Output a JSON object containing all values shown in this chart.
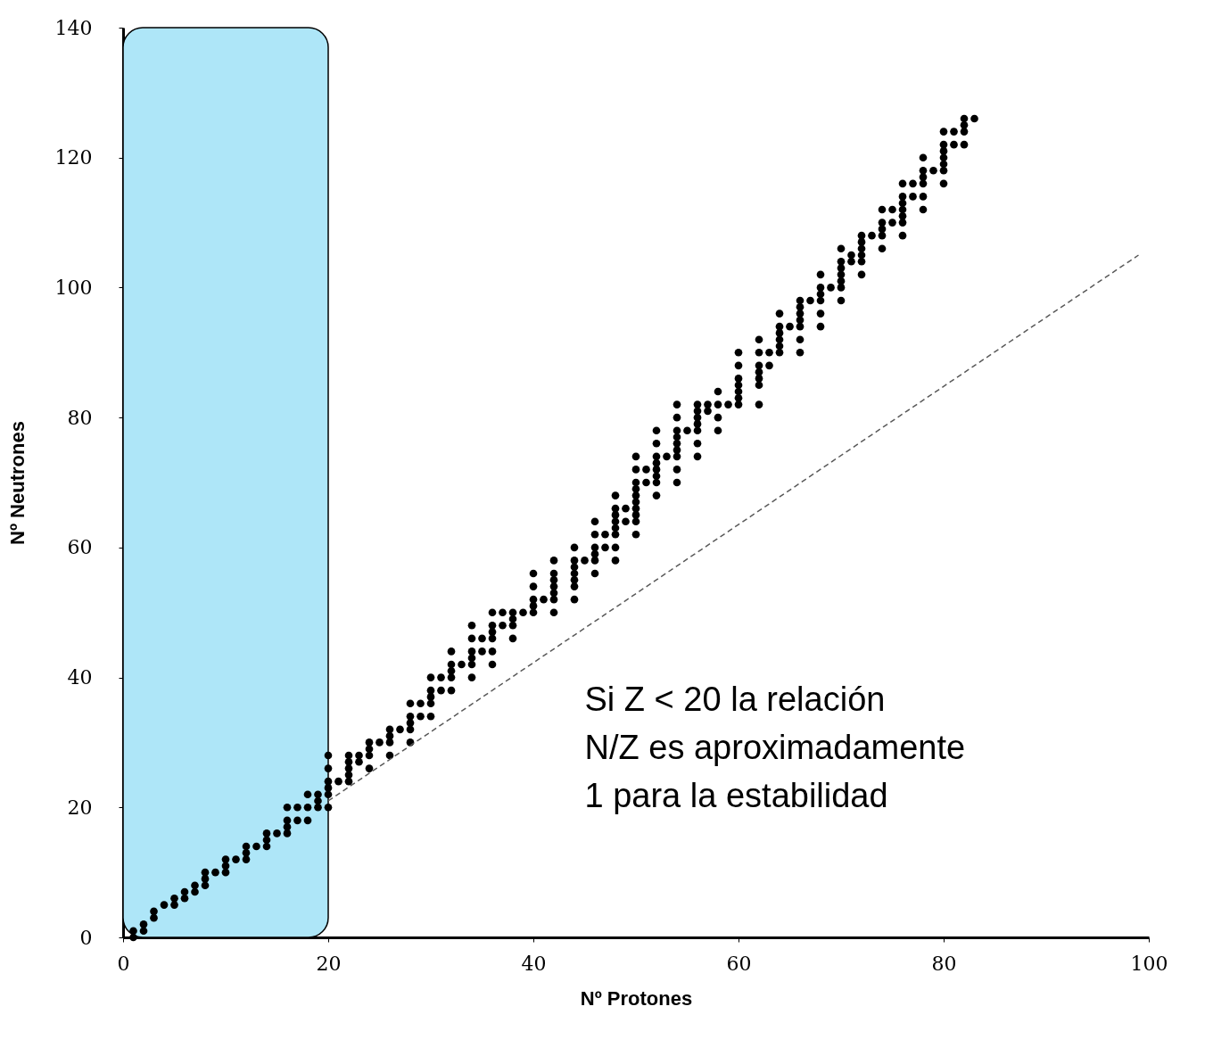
{
  "chart_data": {
    "type": "scatter",
    "xlabel": "Nº Protones",
    "ylabel": "Nº Neutrones",
    "xlim": [
      0,
      100
    ],
    "ylim": [
      0,
      140
    ],
    "xticks": [
      0,
      20,
      40,
      60,
      80,
      100
    ],
    "yticks": [
      0,
      20,
      40,
      60,
      80,
      100,
      120,
      140
    ],
    "grid": false,
    "series": [
      {
        "marker": "circle",
        "color": "#000000",
        "x": [
          1,
          1,
          2,
          2,
          3,
          3,
          4,
          5,
          5,
          6,
          6,
          7,
          7,
          8,
          8,
          8,
          9,
          10,
          10,
          10,
          11,
          12,
          12,
          12,
          13,
          14,
          14,
          14,
          15,
          16,
          16,
          16,
          16,
          17,
          17,
          18,
          18,
          18,
          19,
          19,
          19,
          20,
          20,
          20,
          20,
          20,
          20,
          21,
          22,
          22,
          22,
          22,
          22,
          23,
          23,
          24,
          24,
          24,
          24,
          25,
          26,
          26,
          26,
          26,
          27,
          28,
          28,
          28,
          28,
          28,
          29,
          29,
          30,
          30,
          30,
          30,
          30,
          31,
          31,
          32,
          32,
          32,
          32,
          32,
          33,
          34,
          34,
          34,
          34,
          34,
          34,
          35,
          35,
          36,
          36,
          36,
          36,
          36,
          36,
          37,
          37,
          38,
          38,
          38,
          38,
          39,
          40,
          40,
          40,
          40,
          40,
          41,
          42,
          42,
          42,
          42,
          42,
          42,
          42,
          44,
          44,
          44,
          44,
          44,
          44,
          44,
          45,
          46,
          46,
          46,
          46,
          46,
          46,
          47,
          47,
          48,
          48,
          48,
          48,
          48,
          48,
          48,
          48,
          49,
          49,
          50,
          50,
          50,
          50,
          50,
          50,
          50,
          50,
          50,
          50,
          51,
          51,
          52,
          52,
          52,
          52,
          52,
          52,
          52,
          52,
          53,
          54,
          54,
          54,
          54,
          54,
          54,
          54,
          54,
          54,
          55,
          56,
          56,
          56,
          56,
          56,
          56,
          56,
          57,
          57,
          58,
          58,
          58,
          58,
          59,
          60,
          60,
          60,
          60,
          60,
          60,
          60,
          62,
          62,
          62,
          62,
          62,
          62,
          62,
          63,
          63,
          64,
          64,
          64,
          64,
          64,
          64,
          65,
          66,
          66,
          66,
          66,
          66,
          66,
          66,
          67,
          68,
          68,
          68,
          68,
          68,
          68,
          69,
          70,
          70,
          70,
          70,
          70,
          70,
          70,
          71,
          71,
          72,
          72,
          72,
          72,
          72,
          72,
          73,
          74,
          74,
          74,
          74,
          74,
          75,
          75,
          76,
          76,
          76,
          76,
          76,
          76,
          76,
          77,
          77,
          78,
          78,
          78,
          78,
          78,
          78,
          79,
          80,
          80,
          80,
          80,
          80,
          80,
          80,
          81,
          81,
          82,
          82,
          82,
          82,
          83
        ],
        "values": [
          0,
          1,
          1,
          2,
          3,
          4,
          5,
          5,
          6,
          6,
          7,
          7,
          8,
          8,
          9,
          10,
          10,
          10,
          11,
          12,
          12,
          12,
          13,
          14,
          14,
          14,
          15,
          16,
          16,
          16,
          17,
          18,
          20,
          18,
          20,
          18,
          20,
          22,
          20,
          21,
          22,
          20,
          22,
          23,
          24,
          26,
          28,
          24,
          24,
          25,
          26,
          27,
          28,
          27,
          28,
          26,
          28,
          29,
          30,
          30,
          28,
          30,
          31,
          32,
          32,
          30,
          32,
          33,
          34,
          36,
          34,
          36,
          34,
          36,
          37,
          38,
          40,
          38,
          40,
          38,
          40,
          41,
          42,
          44,
          42,
          40,
          42,
          43,
          44,
          46,
          48,
          44,
          46,
          42,
          44,
          46,
          47,
          48,
          50,
          48,
          50,
          46,
          48,
          49,
          50,
          50,
          50,
          51,
          52,
          54,
          56,
          52,
          50,
          52,
          53,
          54,
          55,
          56,
          58,
          52,
          54,
          55,
          56,
          57,
          58,
          60,
          58,
          56,
          58,
          59,
          60,
          62,
          64,
          60,
          62,
          58,
          60,
          62,
          63,
          64,
          65,
          66,
          68,
          64,
          66,
          62,
          64,
          65,
          66,
          67,
          68,
          69,
          70,
          72,
          74,
          70,
          72,
          68,
          70,
          71,
          72,
          73,
          74,
          76,
          78,
          74,
          70,
          72,
          74,
          75,
          76,
          77,
          78,
          80,
          82,
          78,
          74,
          76,
          78,
          79,
          80,
          81,
          82,
          81,
          82,
          78,
          80,
          82,
          84,
          82,
          82,
          83,
          84,
          85,
          86,
          88,
          90,
          82,
          85,
          86,
          87,
          88,
          90,
          92,
          88,
          90,
          90,
          91,
          92,
          93,
          94,
          96,
          94,
          90,
          92,
          94,
          95,
          96,
          97,
          98,
          98,
          94,
          96,
          98,
          99,
          100,
          102,
          100,
          98,
          100,
          101,
          102,
          103,
          104,
          106,
          104,
          105,
          102,
          104,
          105,
          106,
          107,
          108,
          108,
          106,
          108,
          109,
          110,
          112,
          110,
          112,
          108,
          110,
          111,
          112,
          113,
          114,
          116,
          114,
          116,
          112,
          114,
          116,
          117,
          118,
          120,
          118,
          116,
          118,
          119,
          120,
          121,
          122,
          124,
          122,
          124,
          122,
          124,
          125,
          126,
          126
        ]
      },
      {
        "type": "line",
        "color": "#595959",
        "line_style": "dashed",
        "x": [
          20,
          99
        ],
        "values": [
          21,
          105
        ]
      }
    ],
    "bands": [
      {
        "axis": "x",
        "from": 0,
        "to": 20,
        "color": "#aee6f8"
      }
    ],
    "annotations": [
      "Si Z < 20 la relación N/Z es aproximadamente 1 para la estabilidad"
    ]
  }
}
